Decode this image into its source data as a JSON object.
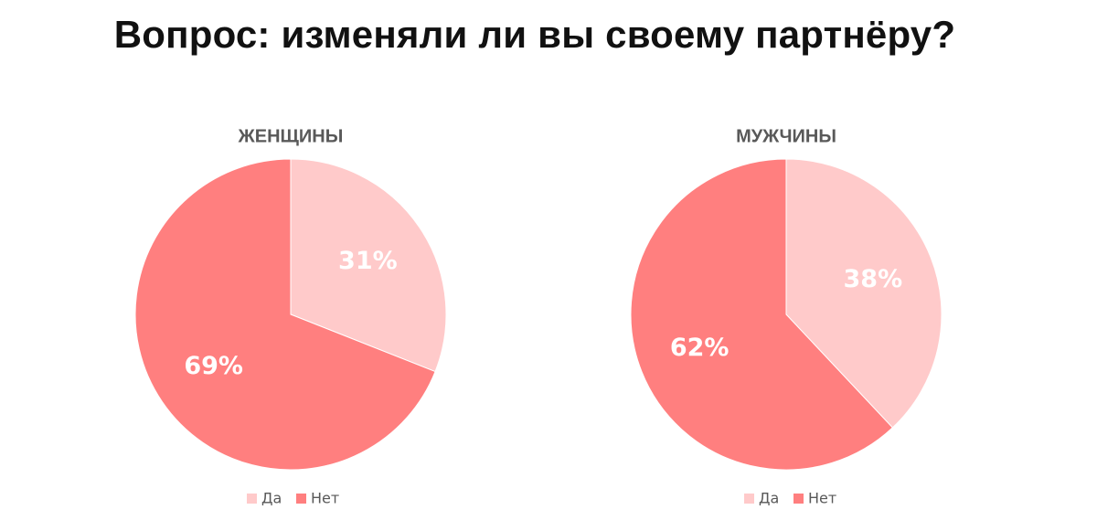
{
  "title": "Вопрос: изменяли ли вы своему партнёру?",
  "colors": {
    "yes": "#FFCACA",
    "no": "#FF7F7F"
  },
  "chart_data": [
    {
      "type": "pie",
      "title": "ЖЕНЩИНЫ",
      "categories": [
        "Да",
        "Нет"
      ],
      "values": [
        31,
        69
      ],
      "labels": [
        "31%",
        "69%"
      ],
      "legend_position": "bottom"
    },
    {
      "type": "pie",
      "title": "МУЖЧИНЫ",
      "categories": [
        "Да",
        "Нет"
      ],
      "values": [
        38,
        62
      ],
      "labels": [
        "38%",
        "62%"
      ],
      "legend_position": "bottom"
    }
  ]
}
